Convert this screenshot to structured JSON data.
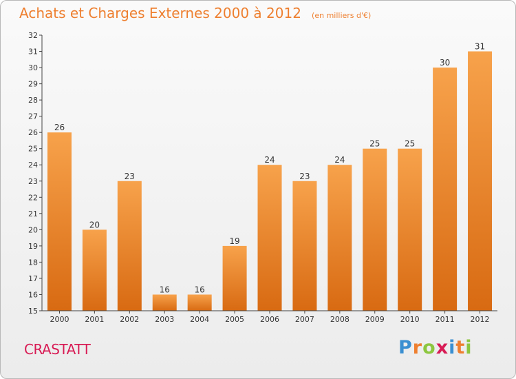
{
  "chart_data": {
    "type": "bar",
    "title": "Achats et Charges Externes 2000 à 2012",
    "subtitle": "(en milliers d'€)",
    "xlabel": "",
    "ylabel": "",
    "categories": [
      "2000",
      "2001",
      "2002",
      "2003",
      "2004",
      "2005",
      "2006",
      "2007",
      "2008",
      "2009",
      "2010",
      "2011",
      "2012"
    ],
    "values": [
      26,
      20,
      23,
      16,
      16,
      19,
      24,
      23,
      24,
      25,
      25,
      30,
      31
    ],
    "data_labels": [
      "26",
      "20",
      "23",
      "16",
      "16",
      "19",
      "24",
      "23",
      "24",
      "25",
      "25",
      "30",
      "31"
    ],
    "ylim": [
      15,
      32
    ],
    "yticks": [
      "15",
      "16",
      "17",
      "18",
      "19",
      "20",
      "21",
      "22",
      "23",
      "24",
      "25",
      "26",
      "27",
      "28",
      "29",
      "30",
      "31",
      "32"
    ],
    "grid": false,
    "legend": "none"
  },
  "location": "CRASTATT",
  "brand": {
    "letters": [
      "P",
      "r",
      "o",
      "x",
      "i",
      "t",
      "i"
    ],
    "colors": [
      "#3a8fd1",
      "#ee7f2f",
      "#8cc63f",
      "#d81c55",
      "#3a8fd1",
      "#ee7f2f",
      "#8cc63f"
    ]
  },
  "colors": {
    "bar_top": "#f7a24b",
    "bar_bottom": "#d86a12",
    "title": "#ee7f2f",
    "location": "#d81c55",
    "axis": "#444444"
  }
}
